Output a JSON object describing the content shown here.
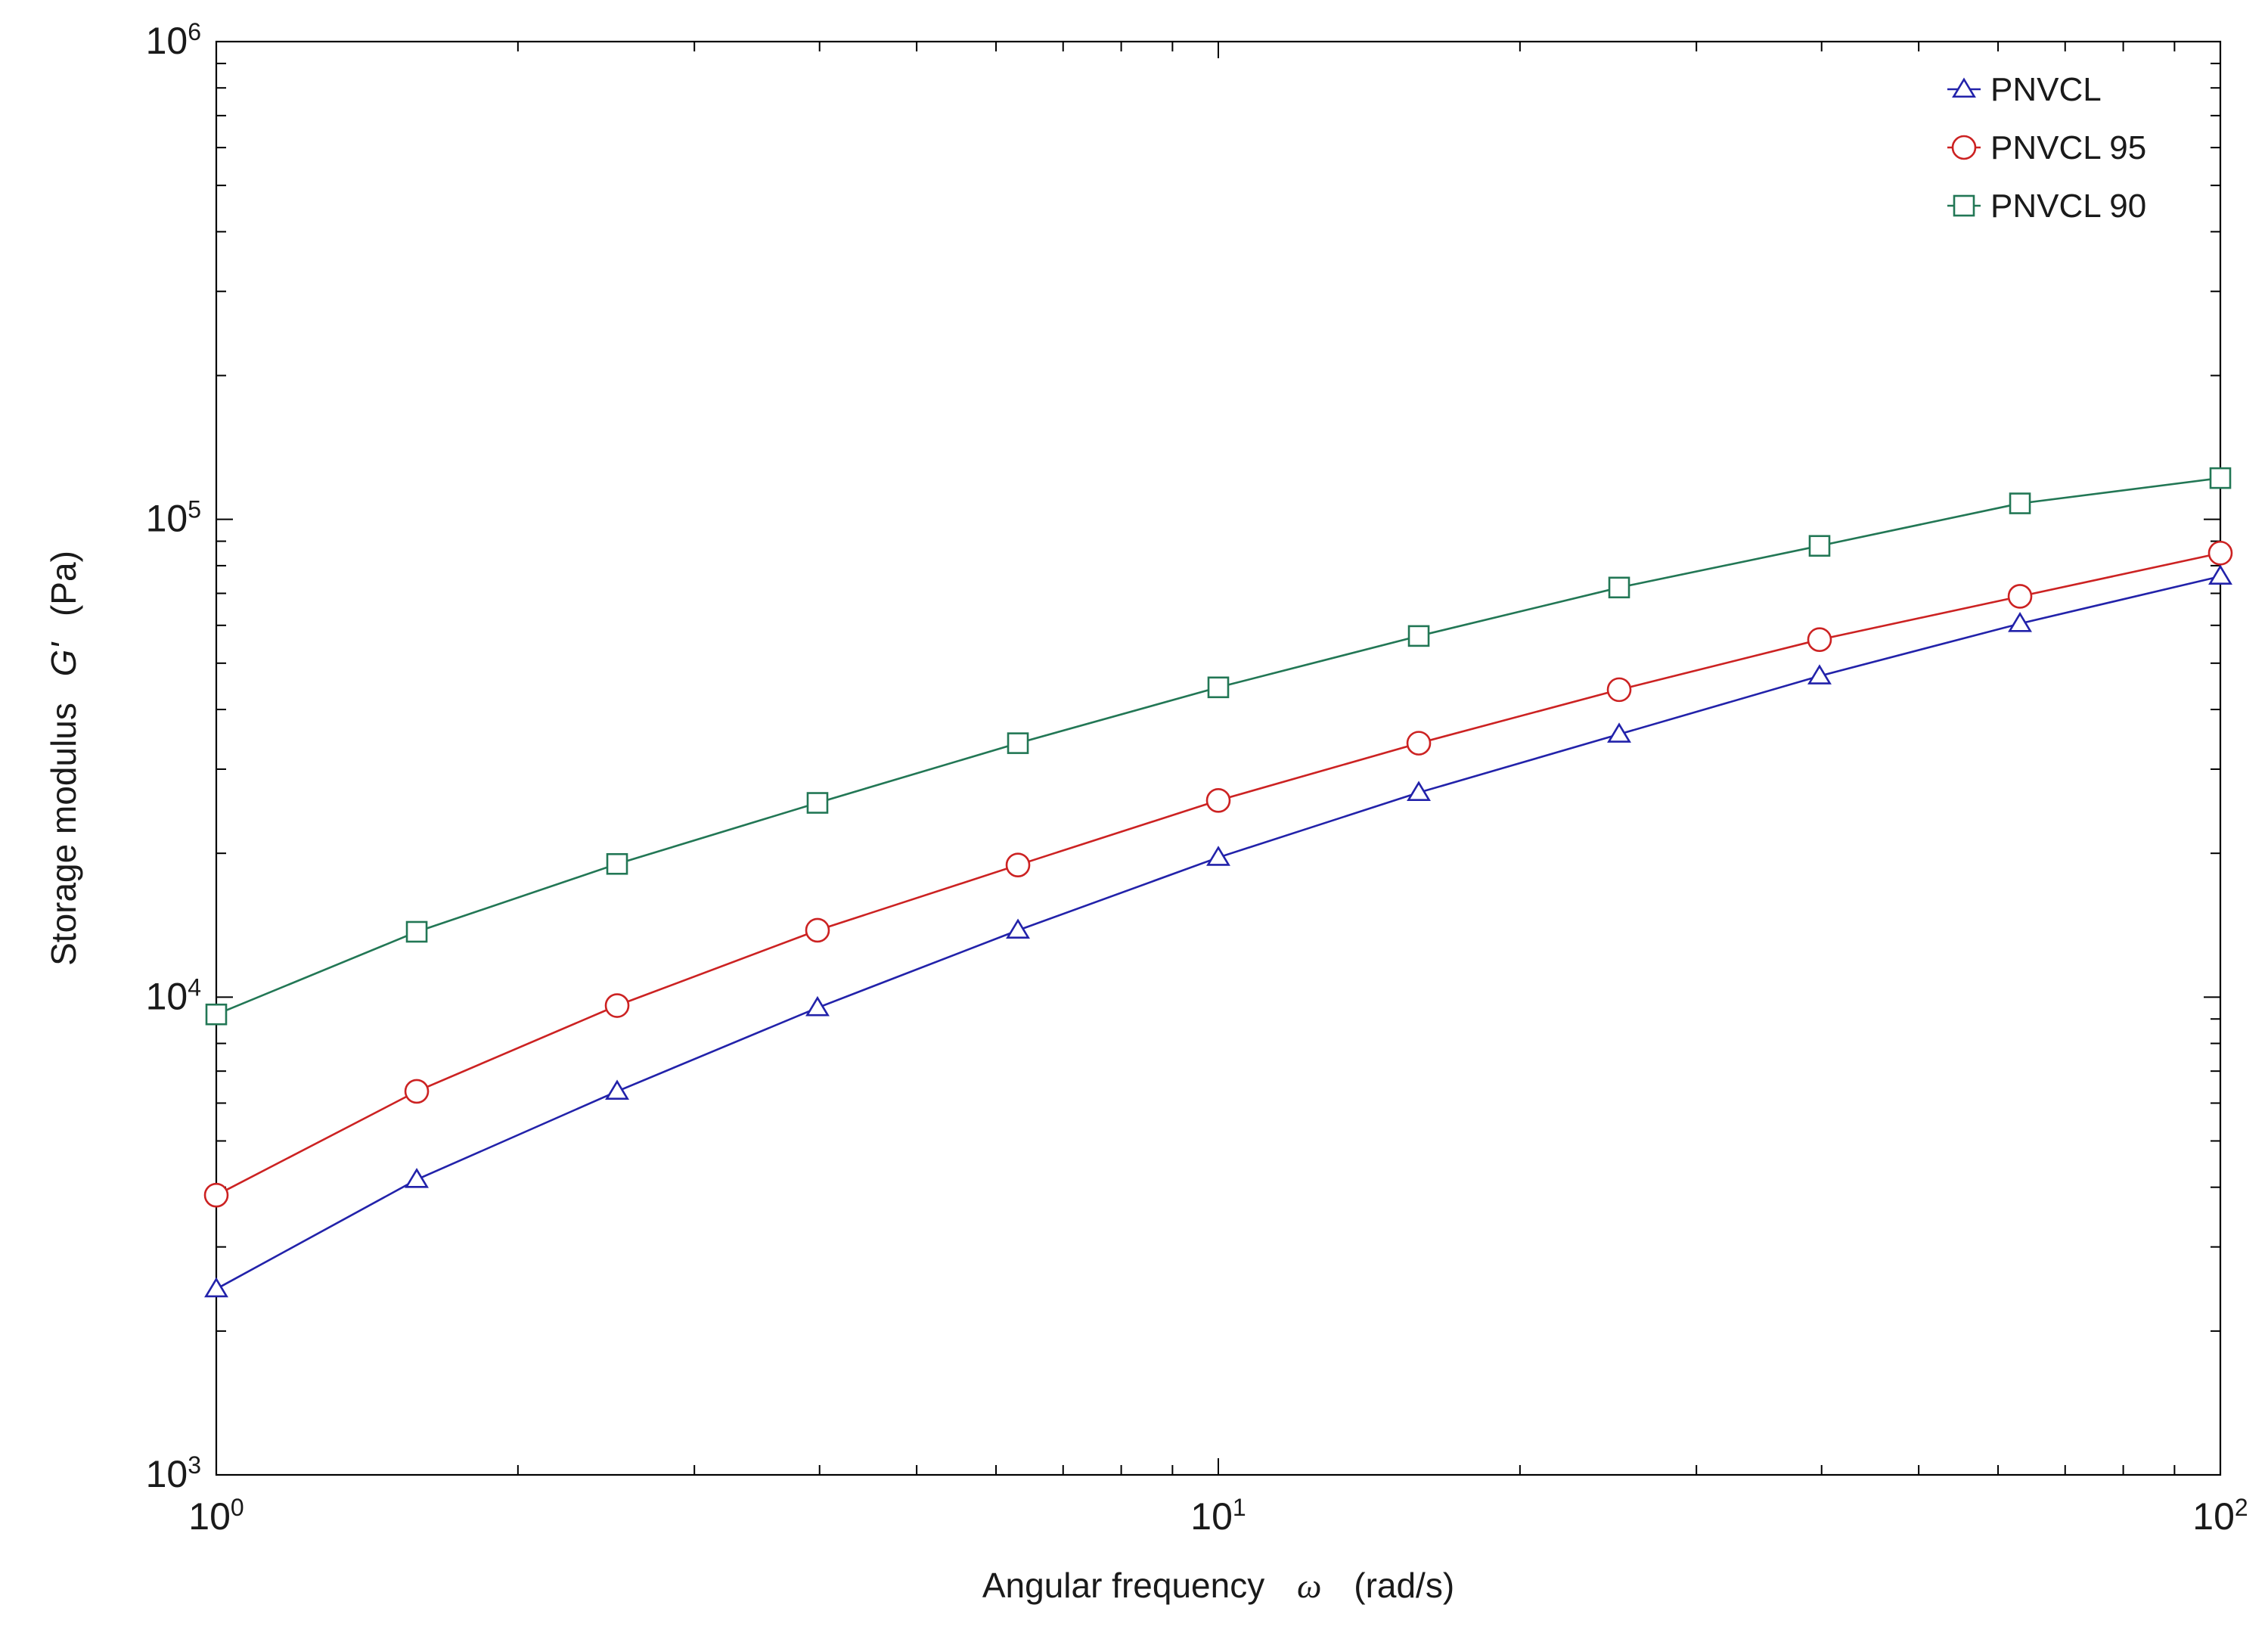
{
  "chart_data": {
    "type": "line",
    "xscale": "log",
    "yscale": "log",
    "xlim": [
      1,
      100
    ],
    "ylim": [
      1000,
      1000000
    ],
    "grid": false,
    "legend_position": "top-right",
    "xlabel": {
      "prefix": "Angular frequency",
      "symbol": "ω",
      "unit": "(rad/s)"
    },
    "ylabel": {
      "prefix": "Storage modulus",
      "symbol": "G'",
      "unit": "(Pa)"
    },
    "x_ticks": [
      {
        "base": "10",
        "exp": "0"
      },
      {
        "base": "10",
        "exp": "1"
      },
      {
        "base": "10",
        "exp": "2"
      }
    ],
    "y_ticks": [
      {
        "base": "10",
        "exp": "3"
      },
      {
        "base": "10",
        "exp": "4"
      },
      {
        "base": "10",
        "exp": "5"
      },
      {
        "base": "10",
        "exp": "6"
      }
    ],
    "x": [
      1,
      1.585,
      2.512,
      3.981,
      6.31,
      10,
      15.85,
      25.12,
      39.81,
      63.1,
      100
    ],
    "series": [
      {
        "name": "PNVCL",
        "marker": "triangle",
        "color": "#2222aa",
        "values": [
          2450,
          4150,
          6350,
          9500,
          13800,
          19600,
          26800,
          35500,
          47000,
          60500,
          76000
        ]
      },
      {
        "name": "PNVCL 95",
        "marker": "circle",
        "color": "#cc2222",
        "values": [
          3850,
          6350,
          9600,
          13800,
          18900,
          25800,
          34000,
          44000,
          56000,
          69000,
          85000
        ]
      },
      {
        "name": "PNVCL 90",
        "marker": "square",
        "color": "#227755",
        "values": [
          9200,
          13700,
          19000,
          25500,
          34000,
          44500,
          57000,
          72000,
          88000,
          108000,
          122000
        ]
      }
    ]
  }
}
